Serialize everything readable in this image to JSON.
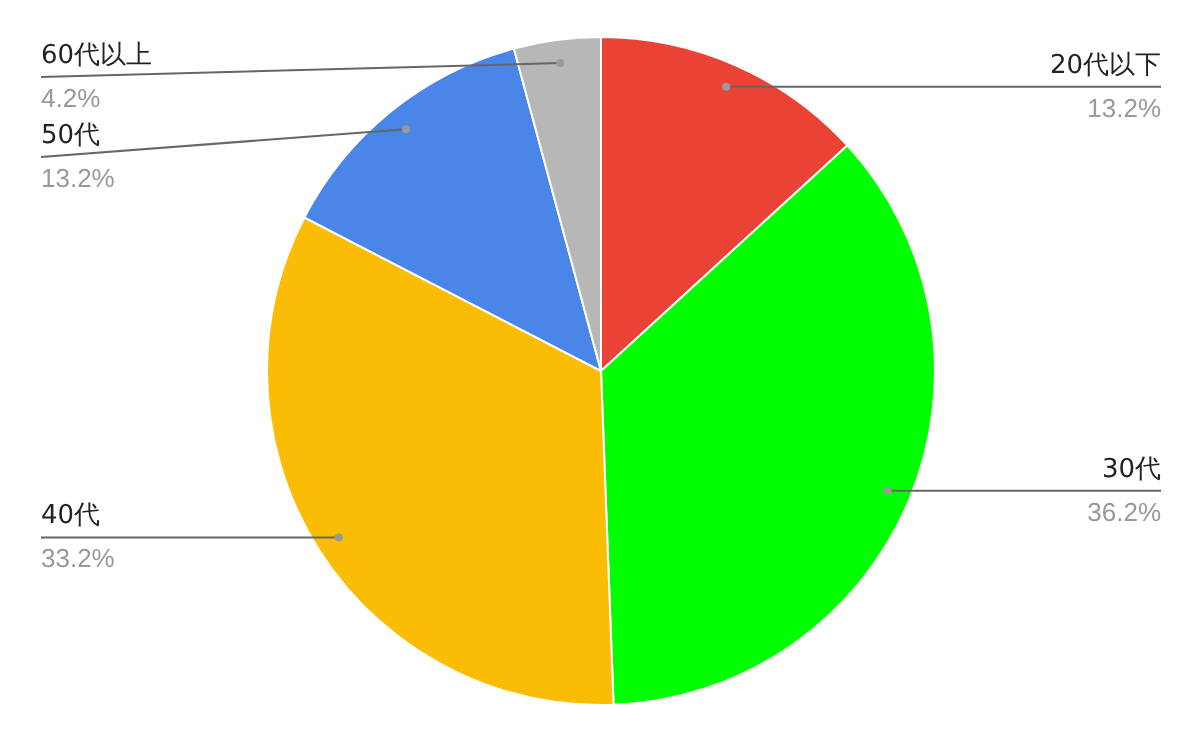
{
  "chart_data": {
    "type": "pie",
    "categories": [
      "20代以下",
      "30代",
      "40代",
      "50代",
      "60代以上"
    ],
    "values": [
      13.2,
      36.2,
      33.2,
      13.2,
      4.2
    ],
    "colors": [
      "#ea4335",
      "#00ff00",
      "#fbbc04",
      "#4a86e8",
      "#b7b7b7"
    ],
    "value_labels": [
      "13.2%",
      "36.2%",
      "33.2%",
      "13.2%",
      "4.2%"
    ]
  }
}
